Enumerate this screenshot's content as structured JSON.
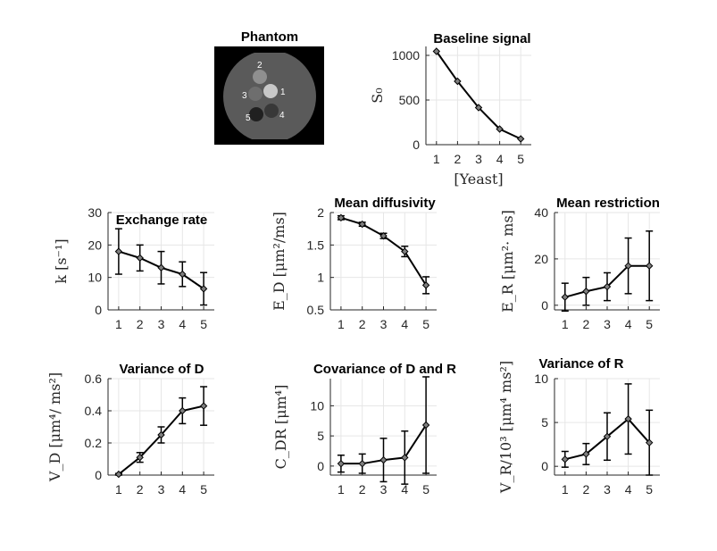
{
  "phantom": {
    "title": "Phantom",
    "labels": [
      "1",
      "2",
      "3",
      "4",
      "5"
    ]
  },
  "colors": {
    "line": "#000000",
    "marker_fill": "#7f7f7f",
    "grid": "#e6e6e6",
    "axis": "#262626"
  },
  "chart_data": [
    {
      "id": "baseline",
      "type": "line",
      "title": "Baseline signal",
      "ylabel": "S₀",
      "xlabel": "[Yeast]",
      "x": [
        1,
        2,
        3,
        4,
        5
      ],
      "values": [
        1045,
        710,
        415,
        175,
        65
      ],
      "errors": [
        0,
        0,
        0,
        0,
        0
      ],
      "xlim": [
        0.5,
        5.5
      ],
      "ylim": [
        0,
        1100
      ],
      "yticks": [
        0,
        500,
        1000
      ],
      "yticklabels": [
        "0",
        "500",
        "1000"
      ],
      "grid": true
    },
    {
      "id": "exchange",
      "type": "line",
      "title": "Exchange rate",
      "ylabel": "k [s⁻¹]",
      "xlabel": "",
      "x": [
        1,
        2,
        3,
        4,
        5
      ],
      "values": [
        18,
        16,
        13,
        11,
        6.5
      ],
      "errors": [
        7,
        4,
        5,
        3.8,
        5
      ],
      "xlim": [
        0.5,
        5.5
      ],
      "ylim": [
        0,
        30
      ],
      "yticks": [
        0,
        10,
        20,
        30
      ],
      "yticklabels": [
        "0",
        "10",
        "20",
        "30"
      ],
      "grid": true
    },
    {
      "id": "diffusivity",
      "type": "line",
      "title": "Mean diffusivity",
      "ylabel": "E_D [μm²/ms]",
      "xlabel": "",
      "x": [
        1,
        2,
        3,
        4,
        5
      ],
      "values": [
        1.92,
        1.82,
        1.64,
        1.4,
        0.88
      ],
      "errors": [
        0.03,
        0.03,
        0.04,
        0.08,
        0.13
      ],
      "xlim": [
        0.5,
        5.5
      ],
      "ylim": [
        0.5,
        2
      ],
      "yticks": [
        0.5,
        1,
        1.5,
        2
      ],
      "yticklabels": [
        "0.5",
        "1",
        "1.5",
        "2"
      ],
      "grid": true
    },
    {
      "id": "restriction",
      "type": "line",
      "title": "Mean restriction",
      "ylabel": "E_R [μm²· ms]",
      "xlabel": "",
      "x": [
        1,
        2,
        3,
        4,
        5
      ],
      "values": [
        3.5,
        6,
        8,
        17,
        17
      ],
      "errors": [
        6,
        6,
        6,
        12,
        15
      ],
      "xlim": [
        0.5,
        5.5
      ],
      "ylim": [
        -2,
        40
      ],
      "yticks": [
        0,
        20,
        40
      ],
      "yticklabels": [
        "0",
        "20",
        "40"
      ],
      "grid": true
    },
    {
      "id": "varD",
      "type": "line",
      "title": "Variance of D",
      "ylabel": "V_D [μm⁴/ ms²]",
      "xlabel": "",
      "x": [
        1,
        2,
        3,
        4,
        5
      ],
      "values": [
        0.005,
        0.11,
        0.25,
        0.4,
        0.43
      ],
      "errors": [
        0.005,
        0.03,
        0.05,
        0.08,
        0.12
      ],
      "xlim": [
        0.5,
        5.5
      ],
      "ylim": [
        0,
        0.6
      ],
      "yticks": [
        0,
        0.2,
        0.4,
        0.6
      ],
      "yticklabels": [
        "0",
        "0.2",
        "0.4",
        "0.6"
      ],
      "grid": true
    },
    {
      "id": "covDR",
      "type": "line",
      "title": "Covariance of D and R",
      "ylabel": "C_DR [μm⁴]",
      "xlabel": "",
      "x": [
        1,
        2,
        3,
        4,
        5
      ],
      "values": [
        0.4,
        0.4,
        1,
        1.4,
        6.8
      ],
      "errors": [
        1.4,
        1.6,
        3.6,
        4.4,
        8
      ],
      "xlim": [
        0.5,
        5.5
      ],
      "ylim": [
        -1.5,
        14.5
      ],
      "yticks": [
        0,
        5,
        10
      ],
      "yticklabels": [
        "0",
        "5",
        "10"
      ],
      "grid": true
    },
    {
      "id": "varR",
      "type": "line",
      "title": "Variance of R",
      "ylabel": "V_R/10³ [μm⁴ ms²]",
      "xlabel": "",
      "x": [
        1,
        2,
        3,
        4,
        5
      ],
      "values": [
        0.8,
        1.4,
        3.4,
        5.4,
        2.7
      ],
      "errors": [
        0.9,
        1.2,
        2.7,
        4,
        3.7
      ],
      "xlim": [
        0.5,
        5.5
      ],
      "ylim": [
        -1,
        10
      ],
      "yticks": [
        0,
        5,
        10
      ],
      "yticklabels": [
        "0",
        "5",
        "10"
      ],
      "grid": true
    }
  ]
}
